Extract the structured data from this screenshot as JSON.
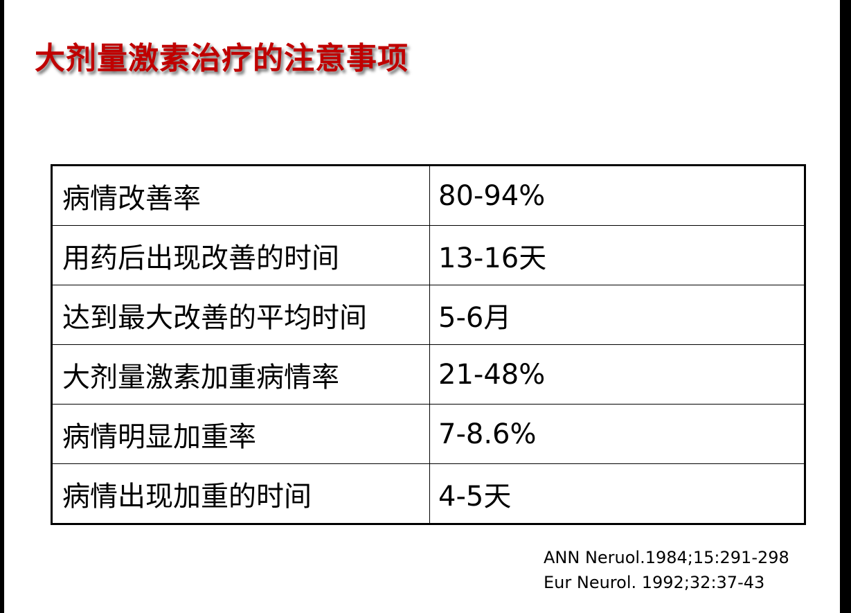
{
  "slide": {
    "title": "大剂量激素治疗的注意事项",
    "title_color": "#c00000",
    "table": {
      "rows": [
        {
          "label": "病情改善率",
          "value": "80-94%"
        },
        {
          "label": "用药后出现改善的时间",
          "value": "13-16天"
        },
        {
          "label": "达到最大改善的平均时间",
          "value": "5-6月"
        },
        {
          "label": "大剂量激素加重病情率",
          "value": "21-48%"
        },
        {
          "label": "病情明显加重率",
          "value": "7-8.6%"
        },
        {
          "label": "病情出现加重的时间",
          "value": "4-5天"
        }
      ]
    },
    "references": [
      "ANN Neruol.1984;15:291-298",
      "Eur Neurol. 1992;32:37-43"
    ]
  }
}
